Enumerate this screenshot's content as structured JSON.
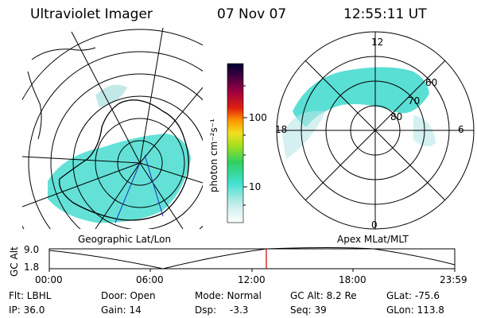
{
  "header": {
    "title": "Ultraviolet Imager",
    "date": "07 Nov 07",
    "time": "12:55:11 UT"
  },
  "colorbar": {
    "unit_label": "photon cm⁻²s⁻¹",
    "ticks": [
      "100",
      "10"
    ]
  },
  "polar_plot": {
    "mlt_labels": [
      "12",
      "18",
      "6",
      "0"
    ],
    "lat_labels": [
      "60",
      "70",
      "80"
    ]
  },
  "panels": {
    "left_label": "Geographic Lat/Lon",
    "right_label": "Apex MLat/MLT"
  },
  "orbit": {
    "ylabel": "GC Alt",
    "yticks": [
      "9.0",
      "1.8"
    ],
    "xticks": [
      "00:00",
      "06:00",
      "12:00",
      "18:00",
      "23:59"
    ]
  },
  "info": {
    "flt": "Flt: LBHL",
    "ip": "IP: 36.0",
    "door": "Door: Open",
    "gain": "Gain: 14",
    "mode": "Mode: Normal",
    "dsp": "Dsp:",
    "dsp_value": "-3.3",
    "gc_alt": "GC Alt: 8.2 Re",
    "seq": "Seq: 39",
    "glat": "GLat: -75.6",
    "glon": "GLon: 113.8"
  },
  "colors": {
    "aurora": "#40e0d0",
    "current_time_marker": "#cc0000"
  }
}
